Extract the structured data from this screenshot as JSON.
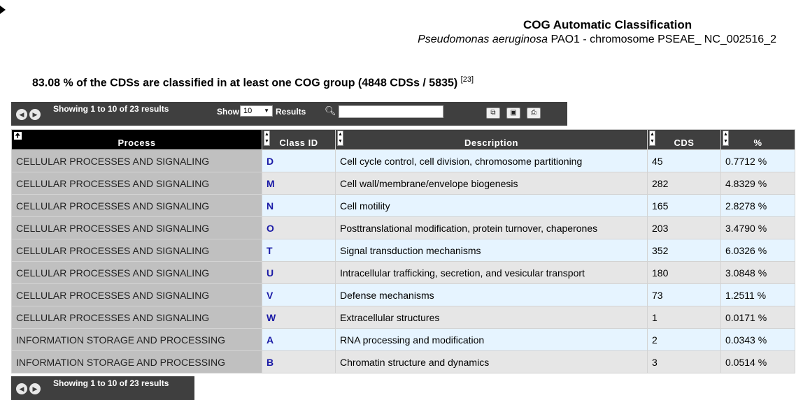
{
  "page": {
    "title": "COG Automatic Classification",
    "organism": "Pseudomonas aeruginosa",
    "organism_rest": "PAO1 - chromosome PSEAE_ NC_002516_2",
    "summary": "83.08 % of the CDSs are classified in at least one COG group (4848 CDSs / 5835)",
    "summary_ref": "[23]"
  },
  "toolbar": {
    "showing": "Showing 1 to 10 of 23 results",
    "show_label": "Show",
    "page_size": "10",
    "results_label": "Results",
    "search_value": ""
  },
  "table": {
    "columns": [
      "Process",
      "Class ID",
      "Description",
      "CDS",
      "%"
    ],
    "rows": [
      {
        "process": "CELLULAR PROCESSES AND SIGNALING",
        "class_id": "D",
        "description": "Cell cycle control, cell division, chromosome partitioning",
        "cds": "45",
        "pct": "0.7712 %"
      },
      {
        "process": "CELLULAR PROCESSES AND SIGNALING",
        "class_id": "M",
        "description": "Cell wall/membrane/envelope biogenesis",
        "cds": "282",
        "pct": "4.8329 %"
      },
      {
        "process": "CELLULAR PROCESSES AND SIGNALING",
        "class_id": "N",
        "description": "Cell motility",
        "cds": "165",
        "pct": "2.8278 %"
      },
      {
        "process": "CELLULAR PROCESSES AND SIGNALING",
        "class_id": "O",
        "description": "Posttranslational modification, protein turnover, chaperones",
        "cds": "203",
        "pct": "3.4790 %"
      },
      {
        "process": "CELLULAR PROCESSES AND SIGNALING",
        "class_id": "T",
        "description": "Signal transduction mechanisms",
        "cds": "352",
        "pct": "6.0326 %"
      },
      {
        "process": "CELLULAR PROCESSES AND SIGNALING",
        "class_id": "U",
        "description": "Intracellular trafficking, secretion, and vesicular transport",
        "cds": "180",
        "pct": "3.0848 %"
      },
      {
        "process": "CELLULAR PROCESSES AND SIGNALING",
        "class_id": "V",
        "description": "Defense mechanisms",
        "cds": "73",
        "pct": "1.2511 %"
      },
      {
        "process": "CELLULAR PROCESSES AND SIGNALING",
        "class_id": "W",
        "description": "Extracellular structures",
        "cds": "1",
        "pct": "0.0171 %"
      },
      {
        "process": "INFORMATION STORAGE AND PROCESSING",
        "class_id": "A",
        "description": "RNA processing and modification",
        "cds": "2",
        "pct": "0.0343 %"
      },
      {
        "process": "INFORMATION STORAGE AND PROCESSING",
        "class_id": "B",
        "description": "Chromatin structure and dynamics",
        "cds": "3",
        "pct": "0.0514 %"
      }
    ]
  },
  "bottom_toolbar": {
    "showing": "Showing 1 to 10 of 23 results"
  },
  "icons": {
    "prev": "arrow-left-icon",
    "next": "arrow-right-icon",
    "search": "search-icon",
    "copy": "copy-icon",
    "save": "save-icon",
    "print": "print-icon"
  },
  "colors": {
    "toolbar_bg": "#3f3f3f",
    "process_bg": "#c0c0c0",
    "class_id": "#1a1aa6",
    "row_light_blue": "#e6f4ff",
    "row_gray": "#e6e6e6"
  }
}
